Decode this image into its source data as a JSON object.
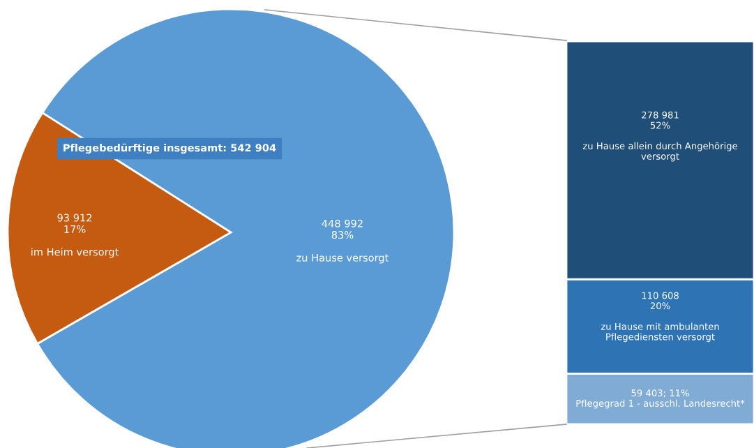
{
  "chart_data": [
    {
      "type": "pie",
      "categories": [
        "zu Hause versorgt",
        "im Heim versorgt"
      ],
      "values": [
        448992,
        93912
      ],
      "colors": [
        "#5b9bd5",
        "#c55a11"
      ],
      "value_labels": [
        "448 992\n83%",
        "93 912\n17%"
      ],
      "annotations": [
        "Pflegebedürftige insgesamt: 542 904"
      ]
    },
    {
      "type": "bar",
      "stacked": true,
      "categories": [
        null
      ],
      "series": [
        {
          "name": "Pflegegrad 1 - ausschl. Landesrecht*",
          "color": "#80abd4",
          "values": [
            59403
          ],
          "value_labels": [
            "59 403; 11%"
          ]
        },
        {
          "name": "zu Hause mit ambulanten Pflegediensten versorgt",
          "color": "#2e74b5",
          "values": [
            110608
          ],
          "value_labels": [
            "110 608\n20%"
          ]
        },
        {
          "name": "zu Hause allein durch Angehörige versorgt",
          "color": "#1f4e79",
          "values": [
            278981
          ],
          "value_labels": [
            "278 981\n52%"
          ]
        }
      ]
    }
  ]
}
